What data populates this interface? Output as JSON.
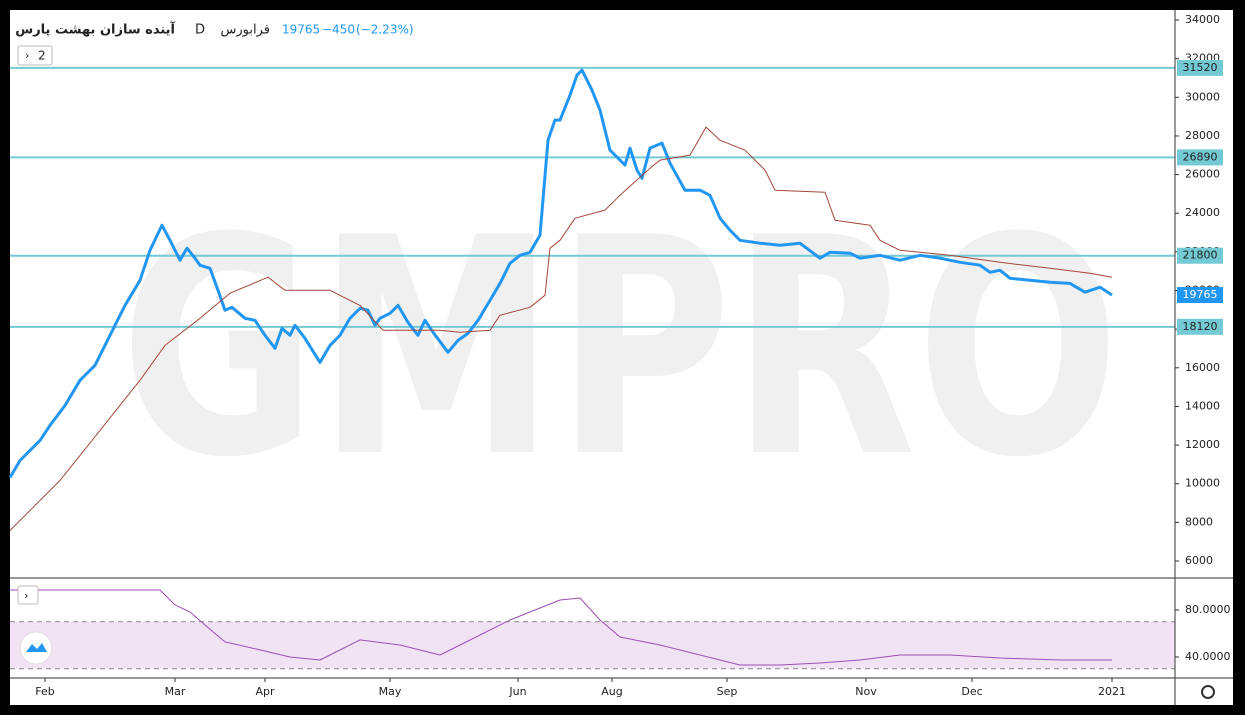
{
  "chart_data": [
    {
      "type": "line",
      "symbol": "آینده سازان بهشت پارس",
      "interval": "D",
      "exchange": "فرابورس",
      "last": 19765,
      "change": "−450",
      "change_pct": "(−2.23%)",
      "legend_count": 2,
      "watermark": "GMPRO",
      "xlim": [
        0,
        233
      ],
      "xticks": [
        {
          "value": 7,
          "label": "Feb"
        },
        {
          "value": 33,
          "label": "Mar"
        },
        {
          "value": 51,
          "label": "Apr"
        },
        {
          "value": 76,
          "label": "May"
        },
        {
          "value": 101.6,
          "label": "Jun"
        },
        {
          "value": 120.4,
          "label": "Aug"
        },
        {
          "value": 143.4,
          "label": "Sep"
        },
        {
          "value": 171.2,
          "label": "Nov"
        },
        {
          "value": 192.4,
          "label": "Dec"
        },
        {
          "value": 220.4,
          "label": "2021"
        }
      ],
      "ylim": [
        5120,
        34415
      ],
      "yticks": [
        6000,
        8000,
        10000,
        12000,
        14000,
        16000,
        18000,
        20000,
        22000,
        24000,
        26000,
        28000,
        30000,
        32000,
        34000
      ],
      "levels": [
        31520,
        26890,
        21800,
        18120
      ],
      "level_color": "#74cad4",
      "last_color": "#2196f3",
      "series": [
        {
          "color": "#2196f3",
          "x": [
            0,
            2,
            6,
            8,
            11,
            14,
            17,
            20,
            23,
            26,
            28,
            30.4,
            32,
            34,
            35.4,
            37,
            38,
            40,
            41.6,
            43,
            44.4,
            47,
            49,
            51,
            53,
            54.4,
            56,
            57,
            59,
            62,
            64,
            66,
            68,
            70,
            71.6,
            73,
            74,
            76,
            77.6,
            79.6,
            81.6,
            83,
            84.6,
            87.6,
            89.6,
            91.6,
            93.6,
            96,
            98,
            100,
            102,
            104,
            106,
            107.6,
            109,
            110,
            112,
            113.4,
            114.4,
            116.4,
            118,
            120,
            123,
            124,
            125.4,
            126.4,
            128,
            130.4,
            132,
            135,
            138,
            140,
            142,
            144,
            146,
            150,
            154,
            158,
            162,
            164,
            168,
            170,
            174,
            178,
            182,
            186,
            190,
            194,
            196,
            198,
            200,
            204,
            208,
            212,
            215,
            218,
            220.4
          ],
          "values": [
            10320,
            11200,
            12240,
            13020,
            14050,
            15350,
            16130,
            17680,
            19230,
            20530,
            22080,
            23380,
            22600,
            21570,
            22190,
            21670,
            21310,
            21150,
            20010,
            18980,
            19130,
            18560,
            18460,
            17680,
            17010,
            18040,
            17680,
            18200,
            17520,
            16280,
            17160,
            17680,
            18560,
            19080,
            18980,
            18200,
            18560,
            18820,
            19230,
            18350,
            17680,
            18460,
            17840,
            16800,
            17420,
            17780,
            18460,
            19490,
            20370,
            21410,
            21820,
            21980,
            22860,
            27780,
            28820,
            28820,
            30110,
            31150,
            31410,
            30370,
            29340,
            27260,
            26490,
            27370,
            26230,
            25810,
            27370,
            27630,
            26590,
            25190,
            25190,
            24930,
            23740,
            23120,
            22600,
            22450,
            22340,
            22450,
            21670,
            21980,
            21930,
            21670,
            21820,
            21570,
            21820,
            21670,
            21460,
            21310,
            20940,
            21050,
            20630,
            20530,
            20430,
            20370,
            19910,
            20170,
            19765
          ]
        },
        {
          "color": "#a5473b",
          "x": [
            0,
            10,
            18,
            26,
            31,
            38,
            44,
            51.6,
            55,
            64,
            70,
            74.6,
            86,
            90,
            96,
            98,
            104,
            107,
            108,
            110,
            113,
            119,
            122,
            128,
            130,
            136,
            139.2,
            142,
            147,
            151,
            153,
            163,
            165,
            172,
            174,
            178,
            188,
            198,
            208,
            216,
            220.4
          ],
          "values": [
            7580,
            10170,
            12760,
            15350,
            17160,
            18560,
            19860,
            20690,
            20010,
            20010,
            19230,
            17940,
            17940,
            17840,
            17940,
            18720,
            19130,
            19750,
            22190,
            22600,
            23740,
            24160,
            24930,
            26330,
            26750,
            27010,
            28460,
            27780,
            27260,
            26230,
            25190,
            25090,
            23640,
            23380,
            22600,
            22080,
            21820,
            21460,
            21150,
            20890,
            20690
          ]
        }
      ]
    },
    {
      "type": "line",
      "xlim": [
        0,
        233
      ],
      "ylim": [
        22.1,
        105.5
      ],
      "yticks": [
        {
          "value": 80,
          "label": "80.0000"
        },
        {
          "value": 40,
          "label": "40.0000"
        }
      ],
      "bands": [
        70,
        30
      ],
      "band_color": "#f1e3f3",
      "series": [
        {
          "color": "#9c4fb5",
          "x": [
            0,
            30,
            33,
            36,
            39,
            43,
            50,
            56,
            62,
            70,
            78,
            86,
            94,
            100,
            106,
            110,
            114,
            118,
            122,
            130,
            138,
            146,
            154,
            162,
            170,
            178,
            188,
            198,
            210,
            220.4
          ],
          "values": [
            97.0,
            97.0,
            84.3,
            78.3,
            67.2,
            52.8,
            46.0,
            40.0,
            37.4,
            54.5,
            50.2,
            41.7,
            58.7,
            71.5,
            81.7,
            88.5,
            90.2,
            71.5,
            57.0,
            50.2,
            41.7,
            33.2,
            33.2,
            34.9,
            37.4,
            41.7,
            41.7,
            39.1,
            37.4,
            37.4
          ]
        }
      ]
    }
  ]
}
